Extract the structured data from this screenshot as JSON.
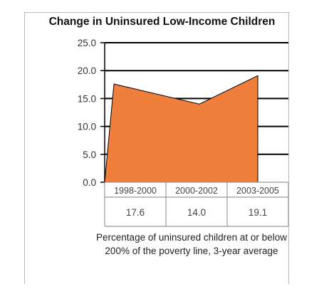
{
  "chart_data": {
    "type": "area",
    "title": "Change in Uninsured Low-Income Children",
    "categories": [
      "1998-2000",
      "2000-2002",
      "2003-2005"
    ],
    "series": [
      {
        "values": [
          17.6,
          14.0,
          19.1
        ],
        "color": "#f07f3c"
      }
    ],
    "data_labels": [
      "17.6",
      "14.0",
      "19.1"
    ],
    "y_ticks": [
      "0.0",
      "5.0",
      "10.0",
      "15.0",
      "20.0",
      "25.0"
    ],
    "ylim": [
      0,
      25
    ],
    "grid": true,
    "legend": "none",
    "caption": "Percentage of uninsured children at or below 200% of the poverty line, 3-year average"
  }
}
